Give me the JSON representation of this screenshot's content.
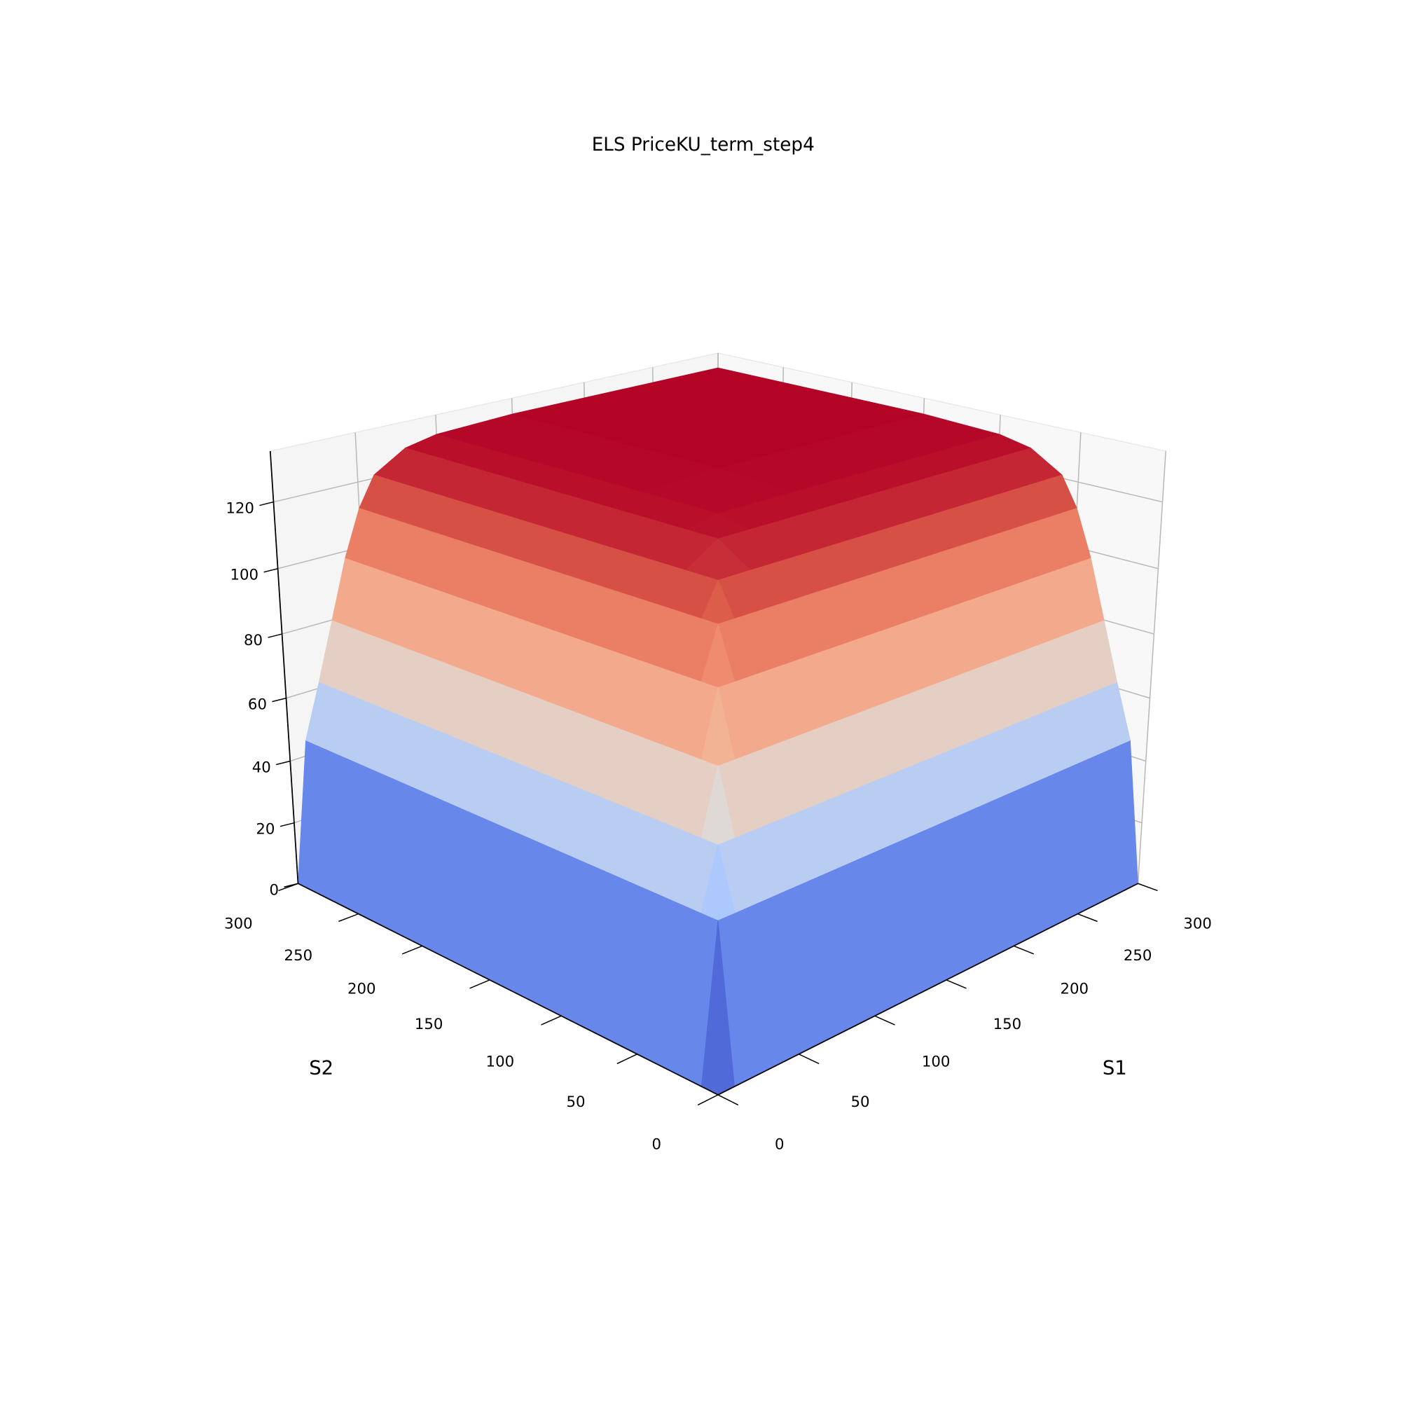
{
  "chart_data": {
    "type": "surface",
    "title": "ELS PriceKU_term_step4",
    "xlabel": "S1",
    "ylabel": "S2",
    "x": [
      0,
      10,
      20,
      30,
      40,
      50,
      60,
      80,
      100,
      150,
      200,
      250,
      300
    ],
    "y": [
      0,
      10,
      20,
      30,
      40,
      50,
      60,
      80,
      100,
      150,
      200,
      250,
      300
    ],
    "z": [
      [
        0,
        0,
        0,
        0,
        0,
        0,
        0,
        0,
        0,
        0,
        0,
        0,
        0
      ],
      [
        0,
        45,
        45,
        45,
        45,
        45,
        45,
        45,
        45,
        45,
        45,
        45,
        45
      ],
      [
        0,
        45,
        62,
        62,
        62,
        62,
        62,
        62,
        62,
        62,
        62,
        62,
        62
      ],
      [
        0,
        45,
        62,
        80,
        80,
        80,
        80,
        80,
        80,
        80,
        80,
        80,
        80
      ],
      [
        0,
        45,
        62,
        80,
        98,
        98,
        98,
        98,
        98,
        98,
        98,
        98,
        98
      ],
      [
        0,
        45,
        62,
        80,
        98,
        112,
        112,
        112,
        112,
        112,
        112,
        112,
        112
      ],
      [
        0,
        45,
        62,
        80,
        98,
        112,
        121,
        121,
        121,
        121,
        121,
        121,
        121
      ],
      [
        0,
        45,
        62,
        80,
        98,
        112,
        121,
        127,
        127,
        127,
        127,
        127,
        127
      ],
      [
        0,
        45,
        62,
        80,
        98,
        112,
        121,
        127,
        129,
        129,
        129,
        129,
        129
      ],
      [
        0,
        45,
        62,
        80,
        98,
        112,
        121,
        127,
        129,
        130,
        130,
        130,
        130
      ],
      [
        0,
        45,
        62,
        80,
        98,
        112,
        121,
        127,
        129,
        130,
        130,
        130,
        130
      ],
      [
        0,
        45,
        62,
        80,
        98,
        112,
        121,
        127,
        129,
        130,
        130,
        130,
        130
      ],
      [
        0,
        45,
        62,
        80,
        98,
        112,
        121,
        127,
        129,
        130,
        130,
        130,
        130
      ]
    ],
    "xlim": [
      0,
      300
    ],
    "ylim": [
      0,
      300
    ],
    "zlim": [
      0,
      135
    ],
    "xticks": [
      0,
      50,
      100,
      150,
      200,
      250,
      300
    ],
    "yticks": [
      0,
      50,
      100,
      150,
      200,
      250,
      300
    ],
    "zticks": [
      0,
      20,
      40,
      60,
      80,
      100,
      120
    ],
    "colormap": "coolwarm",
    "grid": true
  }
}
